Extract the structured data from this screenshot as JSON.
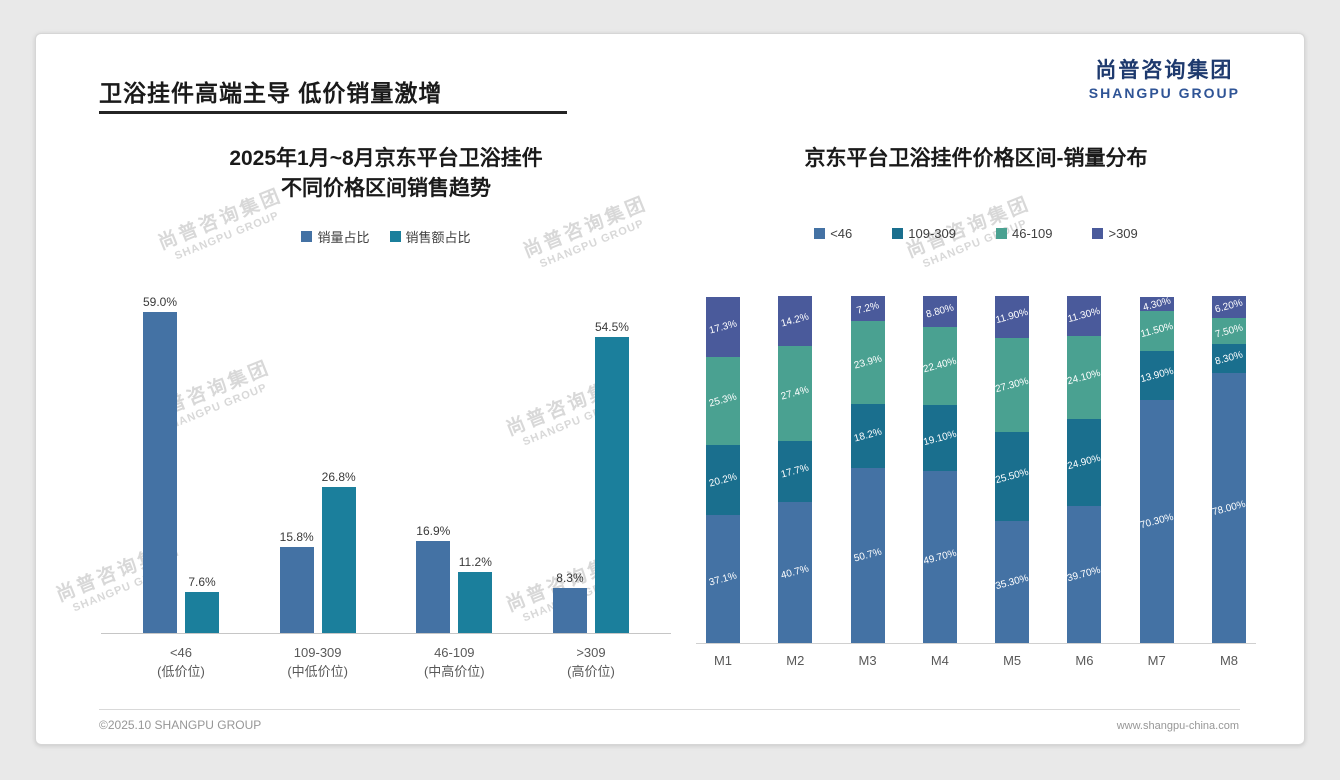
{
  "page": {
    "title": "卫浴挂件高端主导 低价销量激增",
    "footer_left": "©2025.10 SHANGPU GROUP",
    "footer_right": "www.shangpu-china.com"
  },
  "logo": {
    "cn": "尚普咨询集团",
    "en": "SHANGPU GROUP"
  },
  "watermark": {
    "cn": "尚普咨询集团",
    "en": "SHANGPU GROUP"
  },
  "colors": {
    "accent_navy": "#1e3a6e",
    "title_underline": "#242424",
    "volume_blue": "#4472a4",
    "amount_teal": "#1b7f9c",
    "stack_blue": "#4472a4",
    "stack_teal": "#1a6f8e",
    "stack_green": "#4aa191",
    "stack_indigo": "#4a5a9b"
  },
  "chart_data": [
    {
      "type": "bar",
      "title": "2025年1月~8月京东平台卫浴挂件 不同价格区间销售趋势",
      "title_lines": [
        "2025年1月~8月京东平台卫浴挂件",
        "不同价格区间销售趋势"
      ],
      "categories": [
        "<46",
        "109-309",
        "46-109",
        ">309"
      ],
      "category_sub": [
        "(低价位)",
        "(中低价位)",
        "(中高价位)",
        "(高价位)"
      ],
      "ylim": [
        0,
        60
      ],
      "unit": "%",
      "grid": false,
      "legend_position": "top",
      "series": [
        {
          "name": "销量占比",
          "color": "#4472a4",
          "values": [
            59.0,
            15.8,
            16.9,
            8.3
          ],
          "labels": [
            "59.0%",
            "15.8%",
            "16.9%",
            "8.3%"
          ]
        },
        {
          "name": "销售额占比",
          "color": "#1b7f9c",
          "values": [
            7.6,
            26.8,
            11.2,
            54.5
          ],
          "labels": [
            "7.6%",
            "26.8%",
            "11.2%",
            "54.5%"
          ]
        }
      ]
    },
    {
      "type": "stacked-bar",
      "title": "京东平台卫浴挂件价格区间-销量分布",
      "categories": [
        "M1",
        "M2",
        "M3",
        "M4",
        "M5",
        "M6",
        "M7",
        "M8"
      ],
      "ylim": [
        0,
        100
      ],
      "unit": "%",
      "grid": false,
      "legend_position": "top",
      "series": [
        {
          "name": "<46",
          "color": "#4472a4",
          "values": [
            37.1,
            40.7,
            50.7,
            49.7,
            35.3,
            39.7,
            70.3,
            78.0
          ],
          "labels": [
            "37.1%",
            "40.7%",
            "50.7%",
            "49.70%",
            "35.30%",
            "39.70%",
            "70.30%",
            "78.00%"
          ]
        },
        {
          "name": "109-309",
          "color": "#1a6f8e",
          "values": [
            20.2,
            17.7,
            18.2,
            19.1,
            25.5,
            24.9,
            13.9,
            8.3
          ],
          "labels": [
            "20.2%",
            "17.7%",
            "18.2%",
            "19.10%",
            "25.50%",
            "24.90%",
            "13.90%",
            "8.30%"
          ]
        },
        {
          "name": "46-109",
          "color": "#4aa191",
          "values": [
            25.3,
            27.4,
            23.9,
            22.4,
            27.3,
            24.1,
            11.5,
            7.5
          ],
          "labels": [
            "25.3%",
            "27.4%",
            "23.9%",
            "22.40%",
            "27.30%",
            "24.10%",
            "11.50%",
            "7.50%"
          ]
        },
        {
          "name": ">309",
          "color": "#4a5a9b",
          "values": [
            17.3,
            14.2,
            7.2,
            8.8,
            11.9,
            11.3,
            4.3,
            6.2
          ],
          "labels": [
            "17.3%",
            "14.2%",
            "7.2%",
            "8.80%",
            "11.90%",
            "11.30%",
            "4.30%",
            "6.20%"
          ]
        }
      ]
    }
  ]
}
